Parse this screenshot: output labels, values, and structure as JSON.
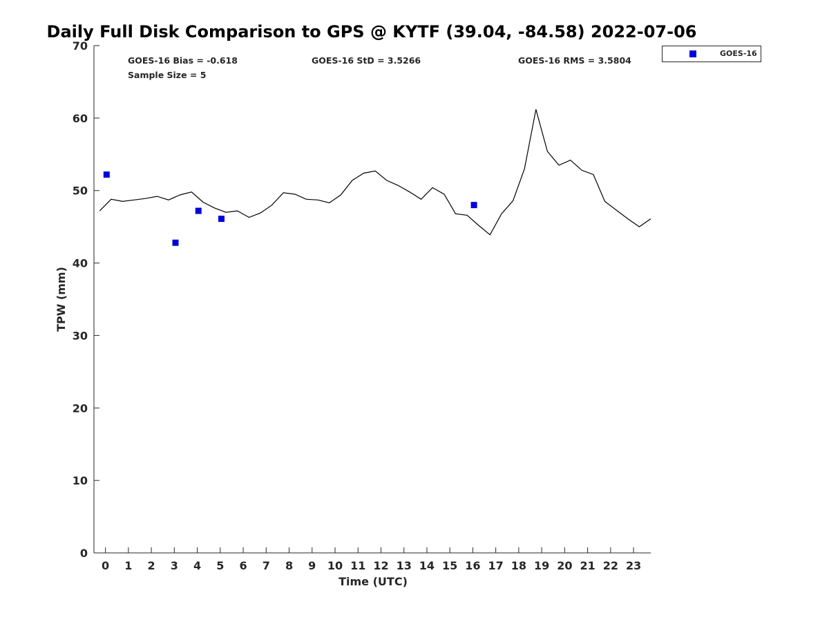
{
  "chart_data": {
    "type": "line",
    "title": "Daily Full Disk Comparison to GPS @ KYTF (39.04, -84.58) 2022-07-06",
    "xlabel": "Time (UTC)",
    "ylabel": "TPW (mm)",
    "xlim": [
      -0.5,
      23.75
    ],
    "ylim": [
      0,
      70
    ],
    "x_ticks": [
      0,
      1,
      2,
      3,
      4,
      5,
      6,
      7,
      8,
      9,
      10,
      11,
      12,
      13,
      14,
      15,
      16,
      17,
      18,
      19,
      20,
      21,
      22,
      23
    ],
    "y_ticks": [
      0,
      10,
      20,
      30,
      40,
      50,
      60,
      70
    ],
    "grid": false,
    "legend_position": "top-right",
    "stats": {
      "bias": "GOES-16 Bias = -0.618",
      "std": "GOES-16 StD = 3.5266",
      "rms": "GOES-16 RMS = 3.5804",
      "sample": "Sample Size = 5"
    },
    "series": [
      {
        "kind": "line",
        "color": "#000000",
        "x": [
          -0.25,
          0.25,
          0.75,
          1.25,
          1.75,
          2.25,
          2.75,
          3.25,
          3.75,
          4.25,
          4.75,
          5.25,
          5.75,
          6.25,
          6.75,
          7.25,
          7.75,
          8.25,
          8.75,
          9.25,
          9.75,
          10.25,
          10.75,
          11.25,
          11.75,
          12.25,
          12.75,
          13.25,
          13.75,
          14.25,
          14.75,
          15.25,
          15.75,
          16.25,
          16.75,
          17.25,
          17.75,
          18.25,
          18.75,
          19.25,
          19.75,
          20.25,
          20.75,
          21.25,
          21.75,
          22.25,
          22.75,
          23.25,
          23.75
        ],
        "values": [
          47.2,
          48.8,
          48.5,
          48.7,
          48.9,
          49.2,
          48.7,
          49.4,
          49.8,
          48.4,
          47.6,
          47.0,
          47.2,
          46.3,
          46.9,
          48.0,
          49.7,
          49.5,
          48.8,
          48.7,
          48.3,
          49.4,
          51.4,
          52.4,
          52.7,
          51.4,
          50.7,
          49.8,
          48.8,
          50.4,
          49.5,
          46.8,
          46.6,
          45.2,
          43.9,
          46.8,
          48.6,
          53.0,
          61.2,
          55.4,
          53.5,
          54.2,
          52.8,
          52.2,
          48.5,
          47.3,
          46.1,
          45.0,
          46.1
        ]
      },
      {
        "kind": "scatter",
        "name": "GOES-16",
        "color": "#0000dd",
        "x": [
          0.05,
          3.05,
          4.05,
          5.05,
          16.05
        ],
        "values": [
          52.2,
          42.8,
          47.2,
          46.1,
          48.0
        ]
      }
    ]
  }
}
